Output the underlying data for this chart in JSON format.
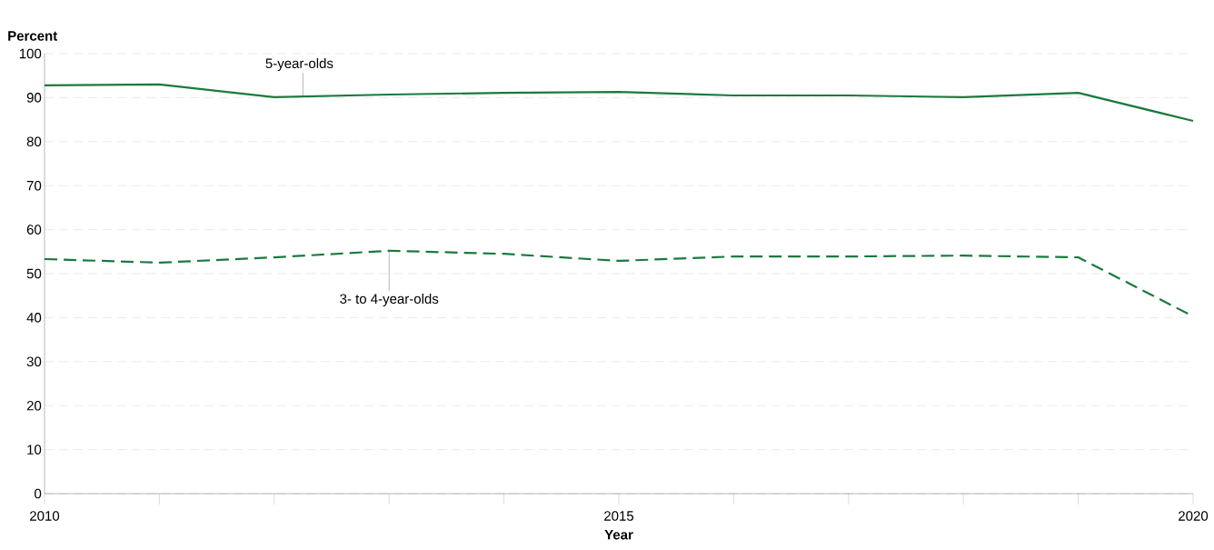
{
  "chart_data": {
    "type": "line",
    "ylabel": "Percent",
    "xlabel": "Year",
    "x": [
      2010,
      2011,
      2012,
      2013,
      2014,
      2015,
      2016,
      2017,
      2018,
      2019,
      2020
    ],
    "series": [
      {
        "name": "5-year-olds",
        "color": "#1b7a3e",
        "line_style": "solid",
        "values": [
          92.8,
          93.0,
          90.1,
          90.7,
          91.1,
          91.3,
          90.5,
          90.5,
          90.1,
          91.1,
          84.7
        ]
      },
      {
        "name": "3- to 4-year-olds",
        "color": "#1b7a3e",
        "line_style": "dashed",
        "values": [
          53.3,
          52.5,
          53.7,
          55.2,
          54.5,
          52.9,
          53.9,
          53.9,
          54.1,
          53.7,
          40.3
        ]
      }
    ],
    "xlim": [
      2010,
      2020
    ],
    "xticks": [
      2010,
      {
        "value": 2011,
        "label": null
      },
      {
        "value": 2012,
        "label": null
      },
      {
        "value": 2013,
        "label": null
      },
      {
        "value": 2014,
        "label": null
      },
      2015,
      {
        "value": 2016,
        "label": null
      },
      {
        "value": 2017,
        "label": null
      },
      {
        "value": 2018,
        "label": null
      },
      {
        "value": 2019,
        "label": null
      },
      2020
    ],
    "ylim": [
      0,
      100
    ],
    "yticks": [
      0,
      10,
      20,
      30,
      40,
      50,
      60,
      70,
      80,
      90,
      100
    ],
    "grid": "y",
    "marker": "none"
  }
}
